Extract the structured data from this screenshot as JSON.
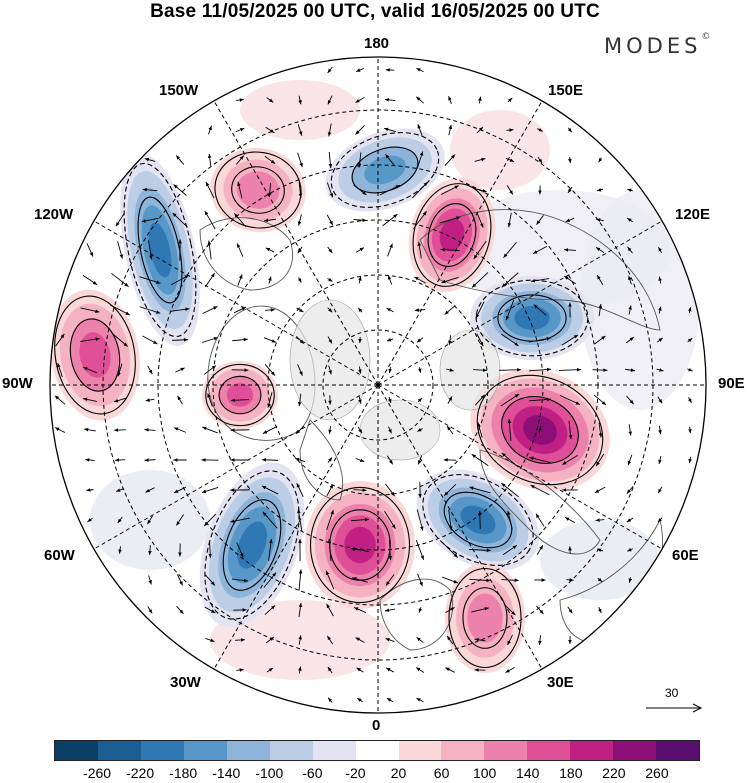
{
  "title": "Base 11/05/2025 00 UTC, valid 16/05/2025 00 UTC",
  "brand": "MODES",
  "longitude_labels": {
    "top": "180",
    "bottom": "0",
    "left": "90W",
    "right": "90E",
    "upper_left_1": "150W",
    "upper_left_2": "120W",
    "lower_left_1": "60W",
    "lower_left_2": "30W",
    "upper_right_1": "150E",
    "upper_right_2": "120E",
    "lower_right_1": "60E",
    "lower_right_2": "30E"
  },
  "reference_vector": {
    "label": "30"
  },
  "colorbar": {
    "colors": [
      "#0c3f66",
      "#1b5e94",
      "#2f78b4",
      "#5798c8",
      "#8eb5d9",
      "#bccde6",
      "#e3e3f1",
      "#ffffff",
      "#fbd8d8",
      "#f4b2c2",
      "#ec82ab",
      "#de4f97",
      "#c01f84",
      "#8c0f78",
      "#5a0f6e"
    ],
    "tick_labels": [
      "-260",
      "-220",
      "-180",
      "-140",
      "-100",
      "-60",
      "-20",
      "20",
      "60",
      "100",
      "140",
      "180",
      "220",
      "260"
    ]
  },
  "anomaly_centers": [
    {
      "sign": "negative",
      "level": 4,
      "near": "Gulf of Alaska / 170W"
    },
    {
      "sign": "negative",
      "level": 5,
      "near": "western Canada 130W"
    },
    {
      "sign": "positive",
      "level": 3,
      "near": "150W north Pacific"
    },
    {
      "sign": "positive",
      "level": 5,
      "near": "eastern Siberia 135E"
    },
    {
      "sign": "negative",
      "level": 5,
      "near": "central Siberia 100E"
    },
    {
      "sign": "positive",
      "level": 6,
      "near": "Kazakhstan 75E"
    },
    {
      "sign": "negative",
      "level": 5,
      "near": "Scandinavia 45E"
    },
    {
      "sign": "positive",
      "level": 5,
      "near": "North Atlantic 15W"
    },
    {
      "sign": "negative",
      "level": 5,
      "near": "western Atlantic 50W"
    },
    {
      "sign": "positive",
      "level": 4,
      "near": "Hudson Bay 80W"
    },
    {
      "sign": "positive",
      "level": 4,
      "near": "US west 105W"
    },
    {
      "sign": "positive",
      "level": 3,
      "near": "Mediterranean 30E"
    }
  ]
}
